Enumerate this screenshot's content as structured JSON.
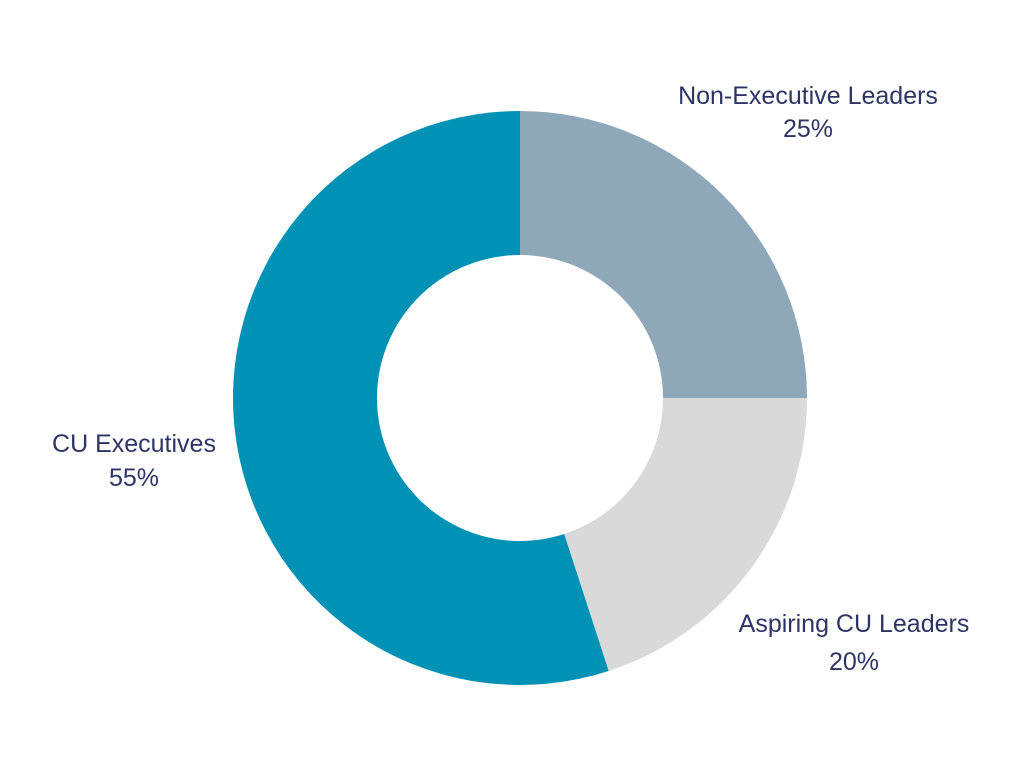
{
  "chart_data": {
    "type": "pie",
    "variant": "donut",
    "title": "",
    "slices": [
      {
        "label": "Non-Executive Leaders",
        "value": 25,
        "value_label": "25%",
        "color": "#8fa8b9"
      },
      {
        "label": "Aspiring CU Leaders",
        "value": 20,
        "value_label": "20%",
        "color": "#d9d9d9"
      },
      {
        "label": "CU Executives",
        "value": 55,
        "value_label": "55%",
        "color": "#0092b5"
      }
    ],
    "legend": "none",
    "label_color": "#2e3466",
    "background": "#ffffff"
  }
}
